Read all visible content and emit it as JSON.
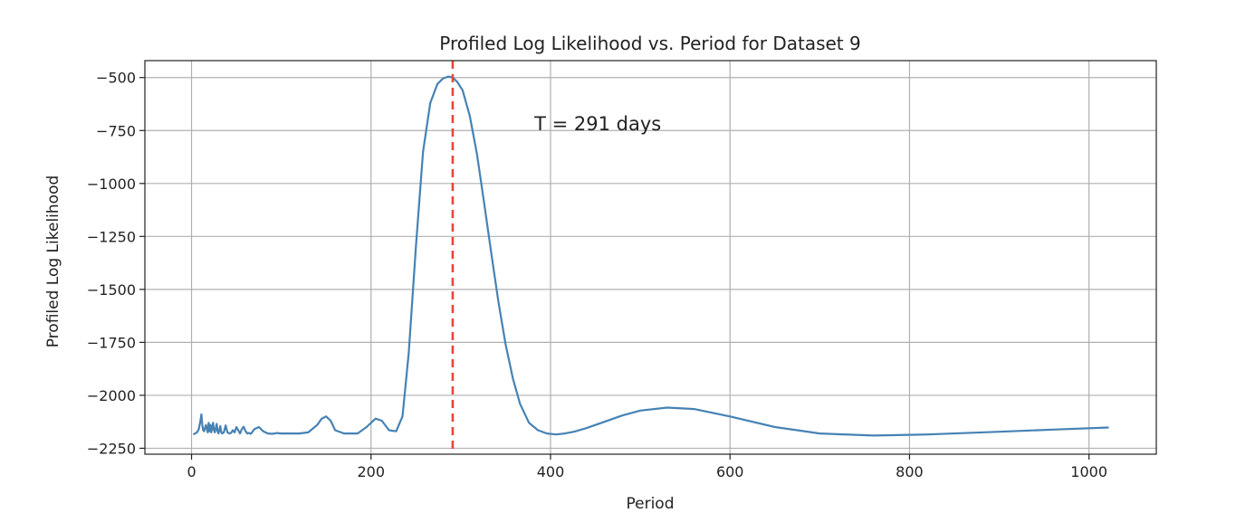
{
  "chart_data": {
    "type": "line",
    "title": "Profiled Log Likelihood vs. Period for Dataset 9",
    "xlabel": "Period",
    "ylabel": "Profiled Log Likelihood",
    "xlim": [
      -52,
      1075
    ],
    "ylim": [
      -2278,
      -420
    ],
    "xticks": [
      0,
      200,
      400,
      600,
      800,
      1000
    ],
    "xtick_labels": [
      "0",
      "200",
      "400",
      "600",
      "800",
      "1000"
    ],
    "yticks": [
      -500,
      -750,
      -1000,
      -1250,
      -1500,
      -1750,
      -2000,
      -2250
    ],
    "ytick_labels": [
      "−500",
      "−750",
      "−1000",
      "−1250",
      "−1500",
      "−1750",
      "−2000",
      "−2250"
    ],
    "grid": true,
    "line_color": "#4682b4",
    "vline": {
      "x": 291,
      "color": "#e8453c",
      "style": "dashed"
    },
    "annotation": {
      "text": "T = 291 days",
      "x": 382,
      "y": -720
    },
    "series": [
      {
        "x": [
          2,
          4,
          6,
          8,
          10,
          11,
          12,
          13,
          14,
          16,
          18,
          19,
          20,
          21,
          22,
          24,
          25,
          26,
          28,
          29,
          30,
          32,
          33,
          34,
          36,
          38,
          40,
          42,
          44,
          46,
          48,
          50,
          52,
          54,
          56,
          58,
          60,
          62,
          64,
          66,
          70,
          75,
          80,
          85,
          90,
          95,
          100,
          110,
          120,
          130,
          140,
          145,
          150,
          155,
          160,
          170,
          185,
          195,
          205,
          212,
          220,
          228,
          235,
          242,
          250,
          258,
          266,
          274,
          280,
          286,
          291,
          296,
          302,
          310,
          318,
          326,
          334,
          342,
          350,
          358,
          366,
          376,
          386,
          396,
          406,
          416,
          426,
          440,
          460,
          480,
          500,
          530,
          560,
          600,
          650,
          700,
          760,
          820,
          900,
          960,
          1022
        ],
        "y": [
          -2185,
          -2180,
          -2175,
          -2160,
          -2120,
          -2090,
          -2140,
          -2165,
          -2170,
          -2140,
          -2175,
          -2130,
          -2170,
          -2140,
          -2175,
          -2130,
          -2165,
          -2175,
          -2135,
          -2170,
          -2180,
          -2145,
          -2172,
          -2180,
          -2175,
          -2142,
          -2175,
          -2180,
          -2178,
          -2165,
          -2175,
          -2150,
          -2165,
          -2180,
          -2160,
          -2148,
          -2168,
          -2180,
          -2178,
          -2182,
          -2160,
          -2150,
          -2170,
          -2180,
          -2182,
          -2178,
          -2180,
          -2180,
          -2180,
          -2175,
          -2140,
          -2110,
          -2100,
          -2120,
          -2165,
          -2180,
          -2180,
          -2150,
          -2110,
          -2120,
          -2165,
          -2170,
          -2100,
          -1800,
          -1300,
          -850,
          -620,
          -530,
          -505,
          -495,
          -500,
          -520,
          -560,
          -680,
          -860,
          -1090,
          -1330,
          -1560,
          -1760,
          -1920,
          -2040,
          -2130,
          -2165,
          -2180,
          -2185,
          -2180,
          -2172,
          -2155,
          -2125,
          -2095,
          -2072,
          -2058,
          -2065,
          -2100,
          -2150,
          -2180,
          -2190,
          -2185,
          -2172,
          -2162,
          -2152
        ]
      }
    ]
  }
}
